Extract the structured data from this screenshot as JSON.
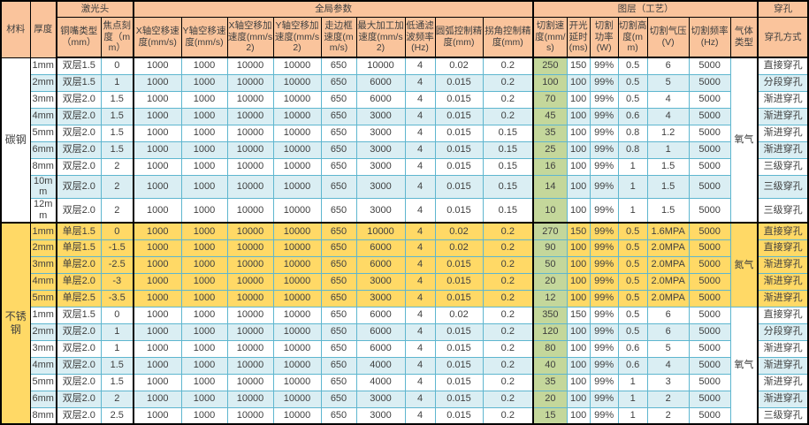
{
  "table": {
    "corner_headers": [
      "材料",
      "厚度"
    ],
    "group_headers": [
      "激光头",
      "全局参数",
      "图层（工艺）",
      "穿孔"
    ],
    "col_headers": [
      "铜嘴类型（mm）",
      "焦点刻度（mm）",
      "X轴空移速度(mm/s)",
      "Y轴空移速度(mm/s)",
      "X轴空移加速度(mm/s2)",
      "Y轴空移加速度(mm/s2)",
      "走边框速度(mm/s)",
      "最大加工加速度(mm/s2)",
      "低通滤波频率(Hz)",
      "圆弧控制精度(mm)",
      "拐角控制精度(mm)",
      "切割速度(mm/s)",
      "开光延时(ms)",
      "切割功率(W)",
      "切割高度(mm)",
      "切割气压(V)",
      "切割频率(Hz)",
      "气体类型",
      "穿孔方式"
    ],
    "sections": [
      {
        "material": "碳钢",
        "subsections": [
          {
            "gas": "氧气",
            "style": "alt",
            "rows": [
              {
                "cells": [
                  "1mm",
                  "双层1.5",
                  "0",
                  "1000",
                  "1000",
                  "10000",
                  "10000",
                  "650",
                  "10000",
                  "4",
                  "0.02",
                  "0.2",
                  "250",
                  "150",
                  "99%",
                  "0.5",
                  "6",
                  "5000",
                  "直接穿孔"
                ]
              },
              {
                "cells": [
                  "2mm",
                  "双层1.5",
                  "1",
                  "1000",
                  "1000",
                  "10000",
                  "10000",
                  "650",
                  "6000",
                  "4",
                  "0.015",
                  "0.2",
                  "100",
                  "100",
                  "99%",
                  "0.5",
                  "5",
                  "5000",
                  "分段穿孔"
                ]
              },
              {
                "cells": [
                  "3mm",
                  "双层2.0",
                  "1.5",
                  "1000",
                  "1000",
                  "10000",
                  "10000",
                  "650",
                  "6000",
                  "4",
                  "0.015",
                  "0.2",
                  "70",
                  "100",
                  "99%",
                  "0.5",
                  "4",
                  "5000",
                  "渐进穿孔"
                ]
              },
              {
                "cells": [
                  "4mm",
                  "双层2.0",
                  "1.5",
                  "1000",
                  "1000",
                  "10000",
                  "10000",
                  "650",
                  "3000",
                  "4",
                  "0.015",
                  "0.2",
                  "45",
                  "100",
                  "99%",
                  "0.6",
                  "4",
                  "5000",
                  "渐进穿孔"
                ]
              },
              {
                "cells": [
                  "5mm",
                  "双层2.0",
                  "1.5",
                  "1000",
                  "1000",
                  "10000",
                  "10000",
                  "650",
                  "3000",
                  "4",
                  "0.015",
                  "0.15",
                  "35",
                  "100",
                  "99%",
                  "0.8",
                  "1.2",
                  "5000",
                  "渐进穿孔"
                ]
              },
              {
                "cells": [
                  "6mm",
                  "双层2.0",
                  "1.5",
                  "1000",
                  "1000",
                  "10000",
                  "10000",
                  "650",
                  "3000",
                  "4",
                  "0.015",
                  "0.15",
                  "25",
                  "100",
                  "99%",
                  "0.8",
                  "1",
                  "5000",
                  "渐进穿孔"
                ]
              },
              {
                "cells": [
                  "8mm",
                  "双层2.0",
                  "2",
                  "1000",
                  "1000",
                  "10000",
                  "10000",
                  "650",
                  "3000",
                  "4",
                  "0.015",
                  "0.15",
                  "16",
                  "100",
                  "99%",
                  "1",
                  "1.5",
                  "5000",
                  "三级穿孔"
                ]
              },
              {
                "cells": [
                  "10mm",
                  "双层2.0",
                  "2",
                  "1000",
                  "1000",
                  "10000",
                  "10000",
                  "650",
                  "3000",
                  "4",
                  "0.015",
                  "0.15",
                  "14",
                  "100",
                  "99%",
                  "1",
                  "1.5",
                  "5000",
                  "三级穿孔"
                ]
              },
              {
                "cells": [
                  "12mm",
                  "双层2.0",
                  "2",
                  "1000",
                  "1000",
                  "10000",
                  "10000",
                  "650",
                  "3000",
                  "4",
                  "0.015",
                  "0.15",
                  "10",
                  "100",
                  "99%",
                  "1",
                  "1.5",
                  "5000",
                  "三级穿孔"
                ]
              }
            ]
          }
        ]
      },
      {
        "material": "不锈钢",
        "subsections": [
          {
            "gas": "氮气",
            "style": "yellow",
            "rows": [
              {
                "cells": [
                  "1mm",
                  "单层1.5",
                  "0",
                  "1000",
                  "1000",
                  "10000",
                  "10000",
                  "650",
                  "10000",
                  "4",
                  "0.02",
                  "0.2",
                  "270",
                  "150",
                  "99%",
                  "0.5",
                  "1.6MPA",
                  "5000",
                  "直接穿孔"
                ]
              },
              {
                "cells": [
                  "2mm",
                  "单层1.5",
                  "-1.5",
                  "1000",
                  "1000",
                  "10000",
                  "10000",
                  "650",
                  "6000",
                  "4",
                  "0.02",
                  "0.2",
                  "90",
                  "100",
                  "99%",
                  "0.5",
                  "2.0MPA",
                  "5000",
                  "直接穿孔"
                ]
              },
              {
                "cells": [
                  "3mm",
                  "单层2.0",
                  "-2.5",
                  "1000",
                  "1000",
                  "10000",
                  "10000",
                  "650",
                  "6000",
                  "4",
                  "0.015",
                  "0.2",
                  "50",
                  "100",
                  "99%",
                  "0.5",
                  "2.0MPA",
                  "5000",
                  "渐进穿孔"
                ]
              },
              {
                "cells": [
                  "4mm",
                  "单层2.0",
                  "-3",
                  "1000",
                  "1000",
                  "10000",
                  "10000",
                  "650",
                  "3000",
                  "4",
                  "0.015",
                  "0.2",
                  "20",
                  "100",
                  "99%",
                  "0.5",
                  "2.0MPA",
                  "5000",
                  "渐进穿孔"
                ]
              },
              {
                "cells": [
                  "5mm",
                  "单层2.5",
                  "-3.5",
                  "1000",
                  "1000",
                  "10000",
                  "10000",
                  "650",
                  "3000",
                  "4",
                  "0.015",
                  "0.2",
                  "12",
                  "100",
                  "99%",
                  "0.5",
                  "2.0MPA",
                  "5000",
                  "渐进穿孔"
                ]
              }
            ]
          },
          {
            "gas": "氧气",
            "style": "alt",
            "rows": [
              {
                "cells": [
                  "1mm",
                  "双层1.5",
                  "0",
                  "1000",
                  "1000",
                  "10000",
                  "10000",
                  "650",
                  "6000",
                  "4",
                  "0.02",
                  "0.2",
                  "350",
                  "150",
                  "99%",
                  "0.5",
                  "6",
                  "5000",
                  "直接穿孔"
                ]
              },
              {
                "cells": [
                  "2mm",
                  "双层2.0",
                  "1",
                  "1000",
                  "1000",
                  "10000",
                  "10000",
                  "650",
                  "6000",
                  "4",
                  "0.015",
                  "0.2",
                  "120",
                  "100",
                  "99%",
                  "0.5",
                  "6",
                  "5000",
                  "分段穿孔"
                ]
              },
              {
                "cells": [
                  "3mm",
                  "双层2.0",
                  "1",
                  "1000",
                  "1000",
                  "10000",
                  "10000",
                  "650",
                  "6000",
                  "4",
                  "0.015",
                  "0.2",
                  "80",
                  "100",
                  "99%",
                  "0.6",
                  "5",
                  "5000",
                  "渐进穿孔"
                ]
              },
              {
                "cells": [
                  "4mm",
                  "双层2.0",
                  "1.5",
                  "1000",
                  "1000",
                  "10000",
                  "10000",
                  "650",
                  "4000",
                  "4",
                  "0.015",
                  "0.2",
                  "40",
                  "100",
                  "99%",
                  "0.6",
                  "4",
                  "5000",
                  "渐进穿孔"
                ]
              },
              {
                "cells": [
                  "5mm",
                  "双层2.0",
                  "1.5",
                  "1000",
                  "1000",
                  "10000",
                  "10000",
                  "650",
                  "4000",
                  "4",
                  "0.015",
                  "0.2",
                  "35",
                  "100",
                  "99%",
                  "1",
                  "3",
                  "5000",
                  "渐进穿孔"
                ]
              },
              {
                "cells": [
                  "6mm",
                  "双层2.0",
                  "2",
                  "1000",
                  "1000",
                  "10000",
                  "10000",
                  "650",
                  "3000",
                  "4",
                  "0.015",
                  "0.2",
                  "20",
                  "100",
                  "99%",
                  "1",
                  "2",
                  "5000",
                  "渐进穿孔"
                ]
              },
              {
                "cells": [
                  "8mm",
                  "双层2.0",
                  "2.5",
                  "1000",
                  "1000",
                  "10000",
                  "10000",
                  "650",
                  "3000",
                  "4",
                  "0.015",
                  "0.2",
                  "15",
                  "100",
                  "99%",
                  "1",
                  "2",
                  "5000",
                  "三级穿孔"
                ]
              }
            ]
          }
        ]
      }
    ],
    "colors": {
      "header_bg": "#fac49c",
      "row_blue": "#daeef3",
      "row_yellow": "#ffd966",
      "speed_green": "#c4d79b",
      "grid_cyan": "#5eb6cf",
      "frame_black": "#000000"
    }
  }
}
